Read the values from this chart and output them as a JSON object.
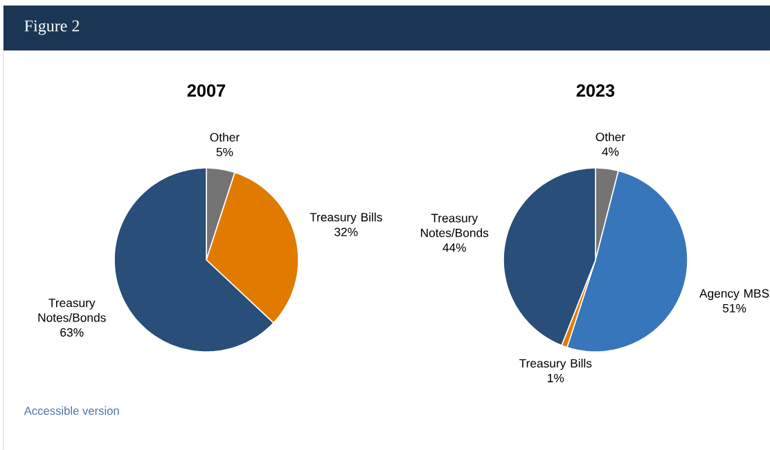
{
  "chart_data": [
    {
      "type": "pie",
      "title": "2007",
      "categories": [
        "Other",
        "Treasury Bills",
        "Treasury Notes/Bonds"
      ],
      "values": [
        5,
        32,
        63
      ],
      "value_labels": [
        "5%",
        "32%",
        "63%"
      ],
      "colors": [
        "#747474",
        "#e07b00",
        "#284e79"
      ],
      "annotations": [
        "Figure 2",
        "Accessible version"
      ]
    },
    {
      "type": "pie",
      "title": "2023",
      "categories": [
        "Other",
        "Agency MBS",
        "Treasury Bills",
        "Treasury Notes/Bonds"
      ],
      "values": [
        4,
        51,
        1,
        44
      ],
      "value_labels": [
        "4%",
        "51%",
        "1%",
        "44%"
      ],
      "colors": [
        "#747474",
        "#3776bb",
        "#e07b00",
        "#284e79"
      ]
    }
  ]
}
